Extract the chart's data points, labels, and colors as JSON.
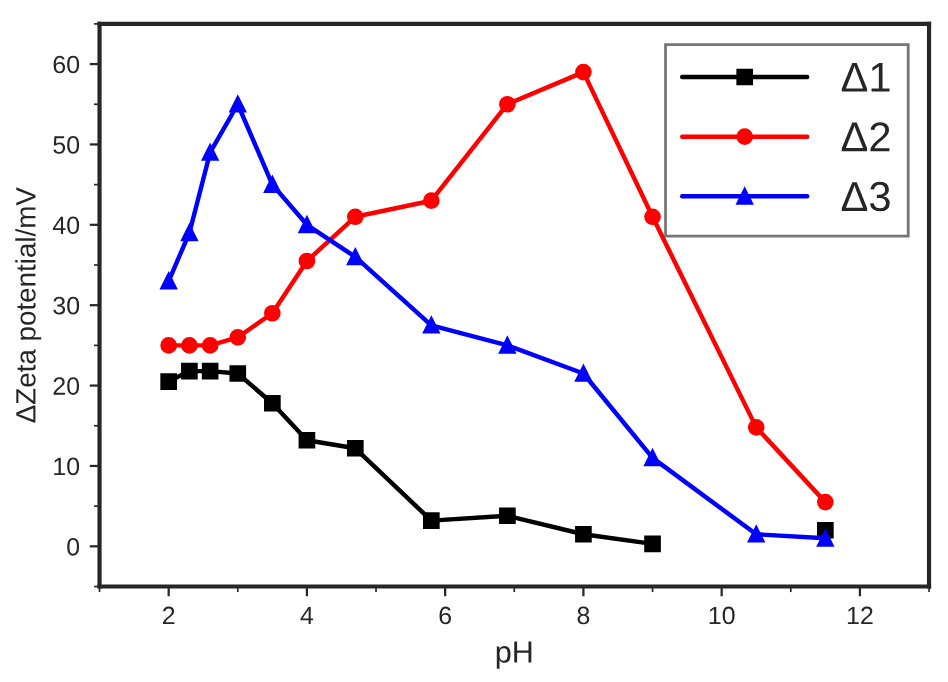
{
  "chart_data": {
    "type": "line",
    "xlabel": "pH",
    "ylabel": "ΔZeta potential/mV",
    "xlim": [
      1,
      13
    ],
    "xticks": [
      2,
      4,
      6,
      8,
      10,
      12
    ],
    "ylim": [
      -5,
      65
    ],
    "yticks": [
      0,
      10,
      20,
      30,
      40,
      50,
      60
    ],
    "grid": false,
    "legend": "top right",
    "series": [
      {
        "name": "Δ1",
        "color": "#000000",
        "marker": "square",
        "x": [
          2,
          2.3,
          2.6,
          3,
          3.5,
          4,
          4.7,
          5.8,
          6.9,
          8,
          9,
          10.5,
          11.5
        ],
        "values": [
          20.5,
          21.8,
          21.8,
          21.5,
          17.8,
          13.2,
          12.2,
          3.2,
          3.8,
          1.5,
          0.3,
          null,
          2.0
        ]
      },
      {
        "name": "Δ2",
        "color": "#ff0000",
        "marker": "circle",
        "x": [
          2,
          2.3,
          2.6,
          3,
          3.5,
          4,
          4.7,
          5.8,
          6.9,
          8,
          9,
          10.5,
          11.5
        ],
        "values": [
          25,
          25,
          25,
          26,
          29,
          35.5,
          41,
          43,
          55,
          59,
          41,
          14.8,
          5.5
        ]
      },
      {
        "name": "Δ3",
        "color": "#0000ff",
        "marker": "triangle",
        "x": [
          2,
          2.3,
          2.6,
          3,
          3.5,
          4,
          4.7,
          5.8,
          6.9,
          8,
          9,
          10.5,
          11.5
        ],
        "values": [
          33,
          39,
          49,
          55,
          45,
          40,
          36,
          27.5,
          25,
          21.5,
          11,
          1.5,
          1.0
        ]
      }
    ]
  }
}
